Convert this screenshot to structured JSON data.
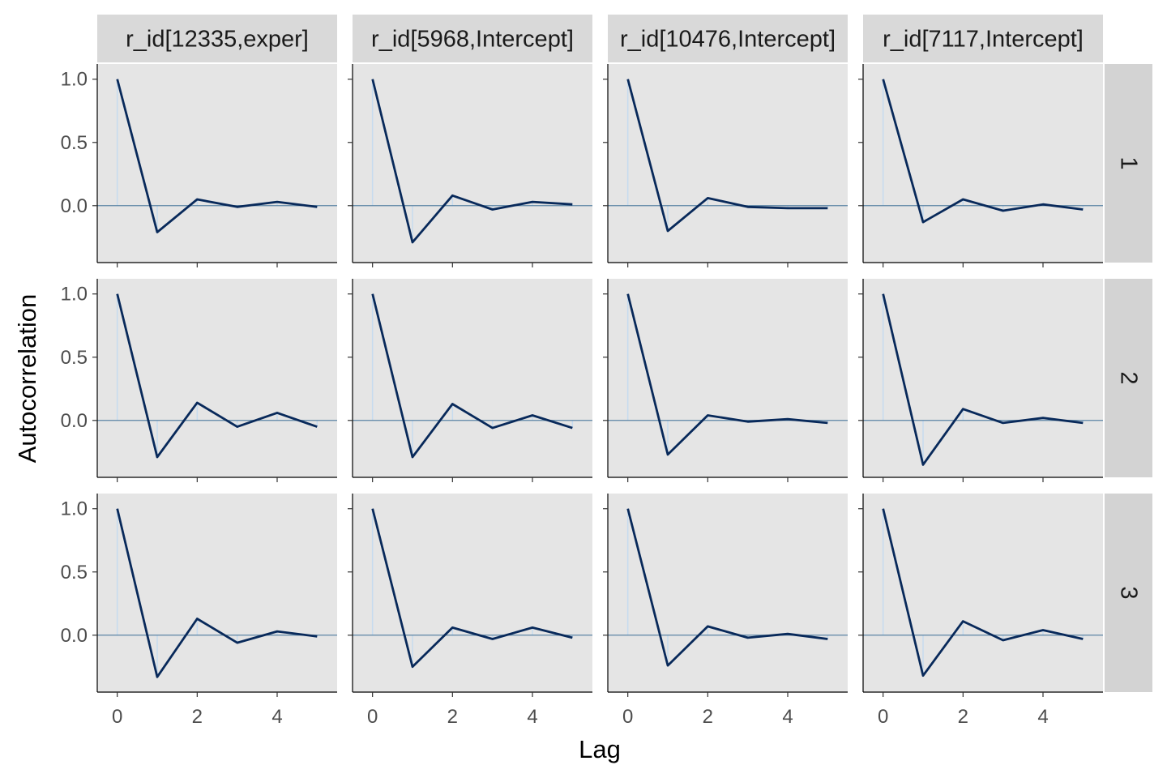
{
  "chart_data": {
    "type": "line",
    "xlabel": "Lag",
    "ylabel": "Autocorrelation",
    "x": [
      0,
      1,
      2,
      3,
      4,
      5
    ],
    "xlim": [
      -0.5,
      5.5
    ],
    "ylim": [
      -0.45,
      1.12
    ],
    "xticks": [
      0,
      2,
      4
    ],
    "yticks": [
      0.0,
      0.5,
      1.0
    ],
    "ytick_labels": [
      "0.0",
      "0.5",
      "1.0"
    ],
    "grid": false,
    "colors": {
      "line": "#08295a",
      "zero_line": "#5b84a5",
      "bar": "#c6dbef",
      "panel_bg": "#e5e5e5",
      "strip_bg": "#d9d9d9",
      "strip_bg_row": "#d3d3d3"
    },
    "columns": [
      "r_id[12335,exper]",
      "r_id[5968,Intercept]",
      "r_id[10476,Intercept]",
      "r_id[7117,Intercept]"
    ],
    "rows": [
      "1",
      "2",
      "3"
    ],
    "panels": [
      [
        [
          1.0,
          -0.21,
          0.05,
          -0.01,
          0.03,
          -0.01
        ],
        [
          1.0,
          -0.29,
          0.08,
          -0.03,
          0.03,
          0.01
        ],
        [
          1.0,
          -0.2,
          0.06,
          -0.01,
          -0.02,
          -0.02
        ],
        [
          1.0,
          -0.13,
          0.05,
          -0.04,
          0.01,
          -0.03
        ]
      ],
      [
        [
          1.0,
          -0.29,
          0.14,
          -0.05,
          0.06,
          -0.05
        ],
        [
          1.0,
          -0.29,
          0.13,
          -0.06,
          0.04,
          -0.06
        ],
        [
          1.0,
          -0.27,
          0.04,
          -0.01,
          0.01,
          -0.02
        ],
        [
          1.0,
          -0.35,
          0.09,
          -0.02,
          0.02,
          -0.02
        ]
      ],
      [
        [
          1.0,
          -0.33,
          0.13,
          -0.06,
          0.03,
          -0.01
        ],
        [
          1.0,
          -0.25,
          0.06,
          -0.03,
          0.06,
          -0.02
        ],
        [
          1.0,
          -0.24,
          0.07,
          -0.02,
          0.01,
          -0.03
        ],
        [
          1.0,
          -0.32,
          0.11,
          -0.04,
          0.04,
          -0.03
        ]
      ]
    ]
  }
}
